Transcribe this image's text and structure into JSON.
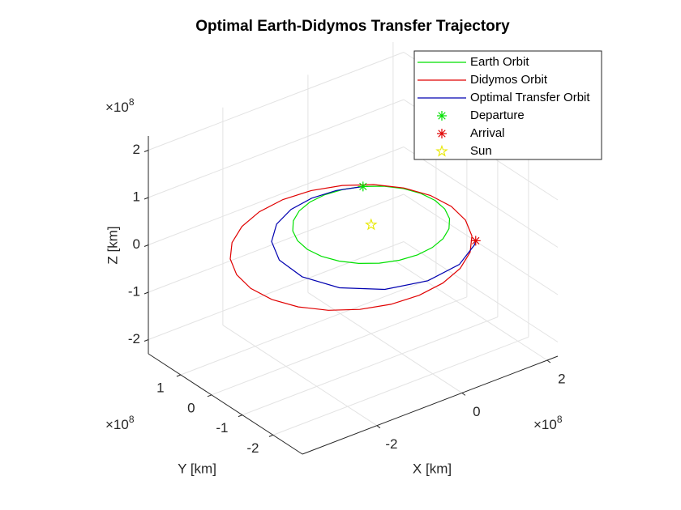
{
  "chart_data": {
    "type": "line3d",
    "title": "Optimal Earth-Didymos Transfer Trajectory",
    "xlabel": "X [km]",
    "ylabel": "Y [km]",
    "zlabel": "Z [km]",
    "xscale": {
      "base": "×10",
      "power": "8"
    },
    "yscale": {
      "base": "×10",
      "power": "8"
    },
    "zscale": {
      "base": "×10",
      "power": "8"
    },
    "xlim": [
      -3.75,
      2.25
    ],
    "ylim": [
      -2.95,
      2.05
    ],
    "zlim": [
      -2.3,
      2.3
    ],
    "xticks": [
      -2,
      0,
      2
    ],
    "yticks": [
      -2,
      -1,
      0,
      1
    ],
    "zticks": [
      -2,
      -1,
      0,
      1,
      2
    ],
    "grid": true,
    "legend": "northeast",
    "series": [
      {
        "name": "Earth Orbit",
        "color": "#00e000",
        "mode": "line",
        "x": [
          1.5,
          1.449,
          1.299,
          1.061,
          0.75,
          0.388,
          0,
          -0.388,
          -0.75,
          -1.061,
          -1.299,
          -1.449,
          -1.5,
          -1.449,
          -1.299,
          -1.061,
          -0.75,
          -0.388,
          0,
          0.388,
          0.75,
          1.061,
          1.299,
          1.449,
          1.5
        ],
        "y": [
          0,
          0.388,
          0.75,
          1.061,
          1.299,
          1.449,
          1.5,
          1.449,
          1.299,
          1.061,
          0.75,
          0.388,
          0,
          -0.388,
          -0.75,
          -1.061,
          -1.299,
          -1.449,
          -1.5,
          -1.449,
          -1.299,
          -1.061,
          -0.75,
          -0.388,
          0
        ],
        "z": [
          0,
          0,
          0,
          0,
          0,
          0,
          0,
          0,
          0,
          0,
          0,
          0,
          0,
          0,
          0,
          0,
          0,
          0,
          0,
          0,
          0,
          0,
          0,
          0,
          0
        ]
      },
      {
        "name": "Didymos Orbit",
        "color": "#e00000",
        "mode": "line",
        "x": [
          1.32,
          0.953,
          0.466,
          -0.108,
          -0.73,
          -1.357,
          -1.948,
          -2.461,
          -2.86,
          -3.12,
          -3.224,
          -3.163,
          -2.94,
          -2.573,
          -2.086,
          -1.512,
          -0.89,
          -0.263,
          0.328,
          0.841,
          1.24,
          1.5,
          1.604,
          1.543,
          1.32
        ],
        "y": [
          0.762,
          1.23,
          1.582,
          1.795,
          1.853,
          1.754,
          1.502,
          1.116,
          0.623,
          0.055,
          -0.548,
          -1.146,
          -1.698,
          -2.166,
          -2.518,
          -2.731,
          -2.789,
          -2.69,
          -2.438,
          -2.052,
          -1.559,
          -0.991,
          -0.388,
          0.21,
          0.762
        ],
        "z": [
          0,
          0,
          0,
          0,
          0,
          0,
          0,
          0,
          0,
          0,
          0,
          0,
          0,
          0,
          0,
          0,
          0,
          0,
          0,
          0,
          0,
          0,
          0,
          0,
          0
        ]
      },
      {
        "name": "Optimal Transfer Orbit",
        "color": "#0000b0",
        "mode": "line",
        "x": [
          0.75,
          0.264,
          -0.273,
          -0.835,
          -1.381,
          -1.851,
          -2.158,
          -2.199,
          -1.897,
          -1.264,
          -0.43,
          0.406,
          1.079,
          1.185
        ],
        "y": [
          1.299,
          1.496,
          1.551,
          1.446,
          1.159,
          0.674,
          0,
          -0.8,
          -1.592,
          -2.189,
          -2.438,
          -2.304,
          -1.869,
          -1.757
        ],
        "z": [
          0,
          0,
          0,
          0,
          0,
          0,
          0,
          0,
          0,
          0,
          0,
          0,
          0,
          0
        ]
      },
      {
        "name": "Departure",
        "color": "#00e000",
        "mode": "marker",
        "marker": "asterisk",
        "x": [
          0.75
        ],
        "y": [
          1.299
        ],
        "z": [
          0
        ]
      },
      {
        "name": "Arrival",
        "color": "#e00000",
        "mode": "marker",
        "marker": "asterisk",
        "x": [
          1.185
        ],
        "y": [
          -1.757
        ],
        "z": [
          0
        ]
      },
      {
        "name": "Sun",
        "color": "#e8e800",
        "mode": "marker",
        "marker": "pentagram",
        "x": [
          0
        ],
        "y": [
          0
        ],
        "z": [
          0
        ]
      }
    ]
  }
}
